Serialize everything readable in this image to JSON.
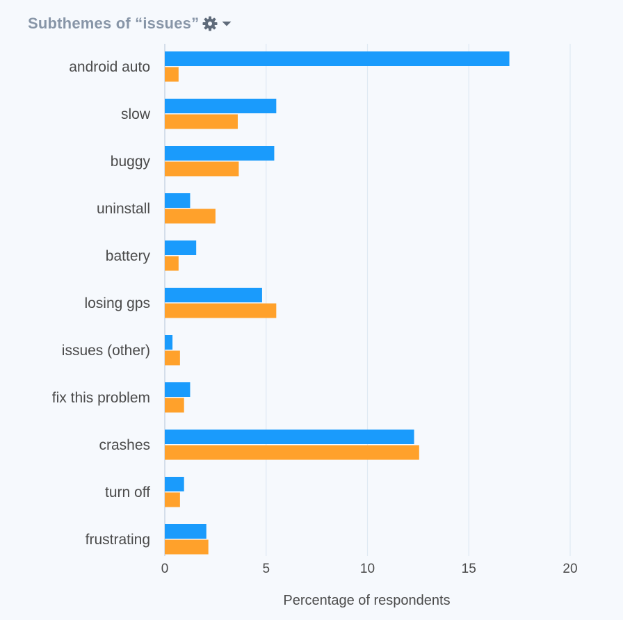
{
  "header": {
    "title": "Subthemes of “issues”",
    "settings_icon": "gear-icon",
    "dropdown_icon": "caret-down-icon"
  },
  "colors": {
    "series_a": "#1a9bfc",
    "series_b": "#ffa12b",
    "grid": "#dfe9f3",
    "background": "#f6f9fd"
  },
  "chart_data": {
    "type": "bar",
    "orientation": "horizontal",
    "title": "Subthemes of “issues”",
    "xlabel": "Percentage of respondents",
    "ylabel": "",
    "xlim": [
      0,
      20
    ],
    "xticks": [
      0,
      5,
      10,
      15,
      20
    ],
    "grid": true,
    "legend": "none",
    "categories": [
      "android auto",
      "slow",
      "buggy",
      "uninstall",
      "battery",
      "losing gps",
      "issues (other)",
      "fix this problem",
      "crashes",
      "turn off",
      "frustrating"
    ],
    "series": [
      {
        "color": "#1a9bfc",
        "values": [
          17.0,
          5.5,
          5.4,
          1.25,
          1.55,
          4.8,
          0.38,
          1.25,
          12.3,
          0.95,
          2.05
        ]
      },
      {
        "color": "#ffa12b",
        "values": [
          0.68,
          3.6,
          3.65,
          2.5,
          0.68,
          5.5,
          0.75,
          0.95,
          12.55,
          0.75,
          2.15
        ]
      }
    ]
  }
}
